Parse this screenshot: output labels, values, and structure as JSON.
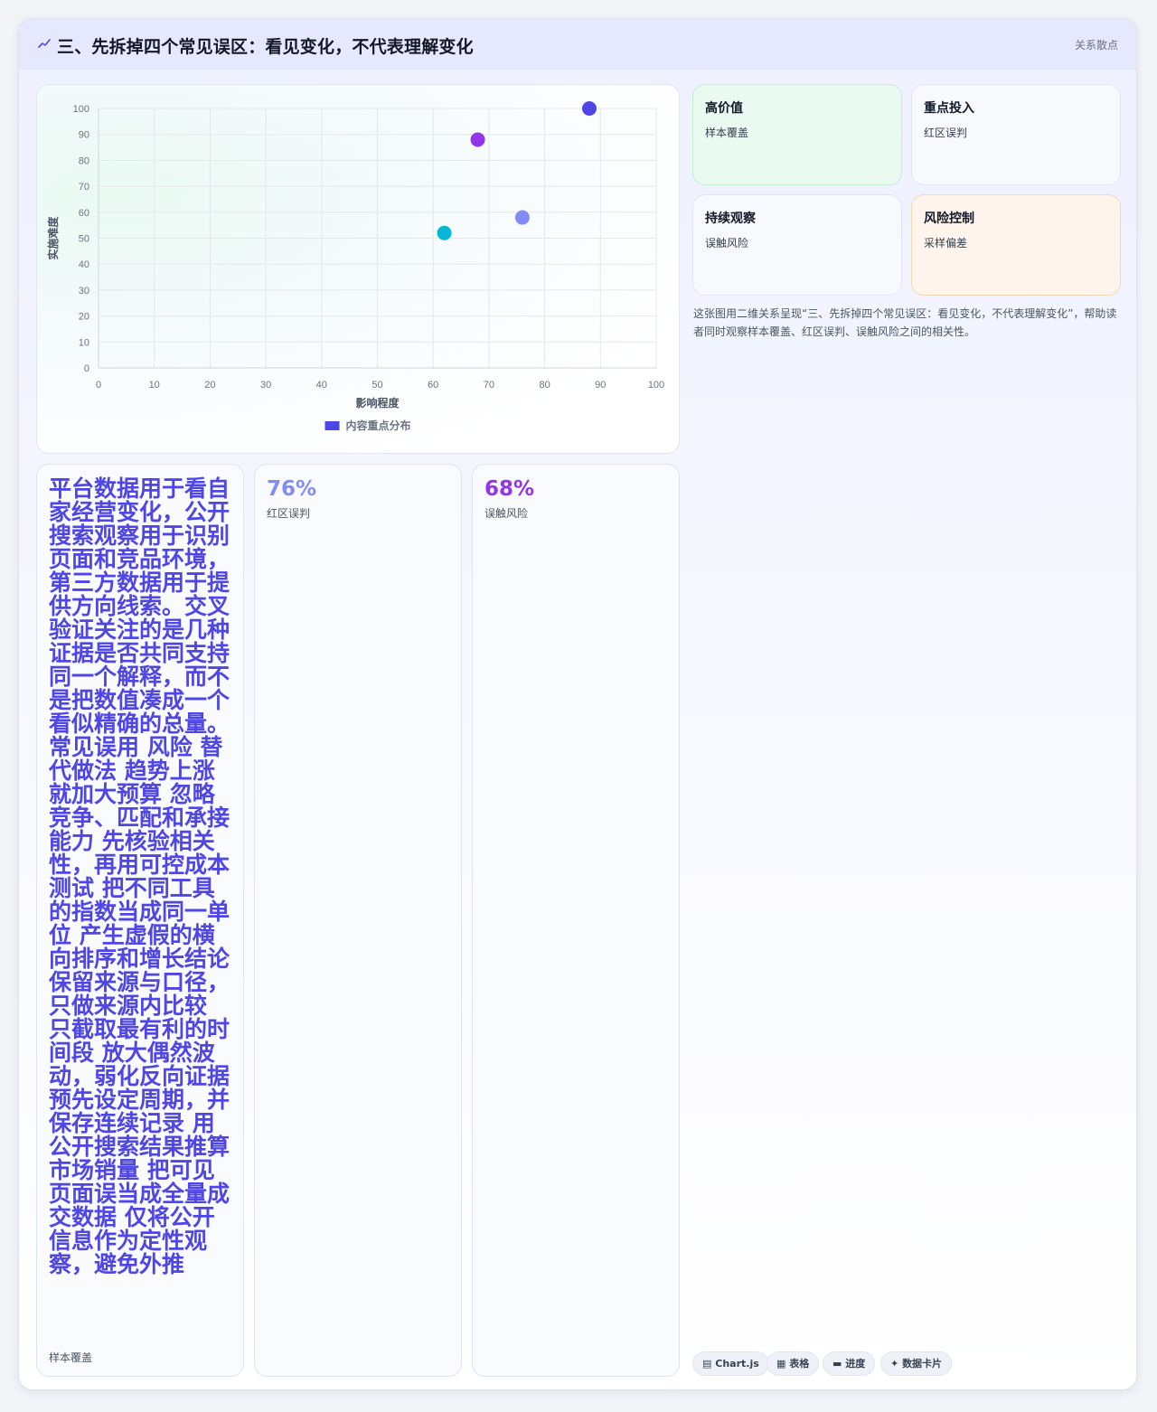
{
  "header": {
    "icon": "trend-line-icon",
    "title": "三、先拆掉四个常见误区：看见变化，不代表理解变化",
    "badge": "关系散点"
  },
  "chart_data": {
    "type": "scatter",
    "xlabel": "影响程度",
    "ylabel": "实施难度",
    "xlim": [
      0,
      100
    ],
    "ylim": [
      0,
      100
    ],
    "xticks": [
      "0",
      "10",
      "20",
      "30",
      "40",
      "50",
      "60",
      "70",
      "80",
      "90",
      "100"
    ],
    "yticks": [
      "0",
      "10",
      "20",
      "30",
      "40",
      "50",
      "60",
      "70",
      "80",
      "90",
      "100"
    ],
    "grid": true,
    "legend_position": "bottom",
    "series": [
      {
        "name": "内容重点分布",
        "color": "#4f46e5",
        "points": [
          {
            "x": 62,
            "y": 52,
            "color": "#06b6d4"
          },
          {
            "x": 68,
            "y": 88,
            "color": "#9333ea"
          },
          {
            "x": 76,
            "y": 58,
            "color": "#818cf8"
          },
          {
            "x": 88,
            "y": 100,
            "color": "#4f46e5"
          }
        ]
      }
    ]
  },
  "tiles": [
    {
      "title": "高价值",
      "subtitle": "样本覆盖"
    },
    {
      "title": "重点投入",
      "subtitle": "红区误判"
    },
    {
      "title": "持续观察",
      "subtitle": "误触风险"
    },
    {
      "title": "风险控制",
      "subtitle": "采样偏差"
    }
  ],
  "description": "这张图用二维关系呈现“三、先拆掉四个常见误区：看见变化，不代表理解变化”，帮助读者同时观察样本覆盖、红区误判、误触风险之间的相关性。",
  "panels": {
    "text_block": {
      "text": "平台数据用于看自家经营变化，公开搜索观察用于识别页面和竞品环境，第三方数据用于提供方向线索。交叉验证关注的是几种证据是否共同支持同一个解释，而不是把数值凑成一个看似精确的总量。 常见误用 风险 替代做法 趋势上涨就加大预算 忽略竞争、匹配和承接能力 先核验相关性，再用可控成本测试 把不同工具的指数当成同一单位 产生虚假的横向排序和增长结论 保留来源与口径，只做来源内比较 只截取最有利的时间段 放大偶然波动，弱化反向证据 预先设定周期，并保存连续记录 用公开搜索结果推算市场销量 把可见页面误当成全量成交数据 仅将公开信息作为定性观察，避免外推",
      "label": "样本覆盖"
    },
    "stats": [
      {
        "value": "76%",
        "label": "红区误判",
        "color": "#818cf8"
      },
      {
        "value": "68%",
        "label": "误触风险",
        "color": "#9333ea"
      }
    ]
  },
  "chips": [
    {
      "icon": "chart-icon",
      "glyph": "▤",
      "label": "Chart.js"
    },
    {
      "icon": "table-icon",
      "glyph": "▦",
      "label": "表格"
    },
    {
      "icon": "progress-icon",
      "glyph": "▬",
      "label": "进度"
    },
    {
      "icon": "sparkle-icon",
      "glyph": "✦",
      "label": "数据卡片"
    }
  ]
}
